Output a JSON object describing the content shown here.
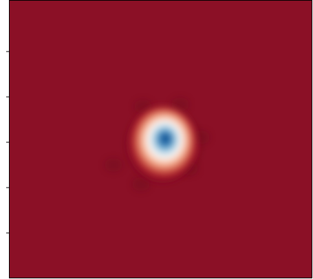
{
  "chart_data": {
    "type": "heatmap",
    "colormap": "RdBu_r"
  }
}
